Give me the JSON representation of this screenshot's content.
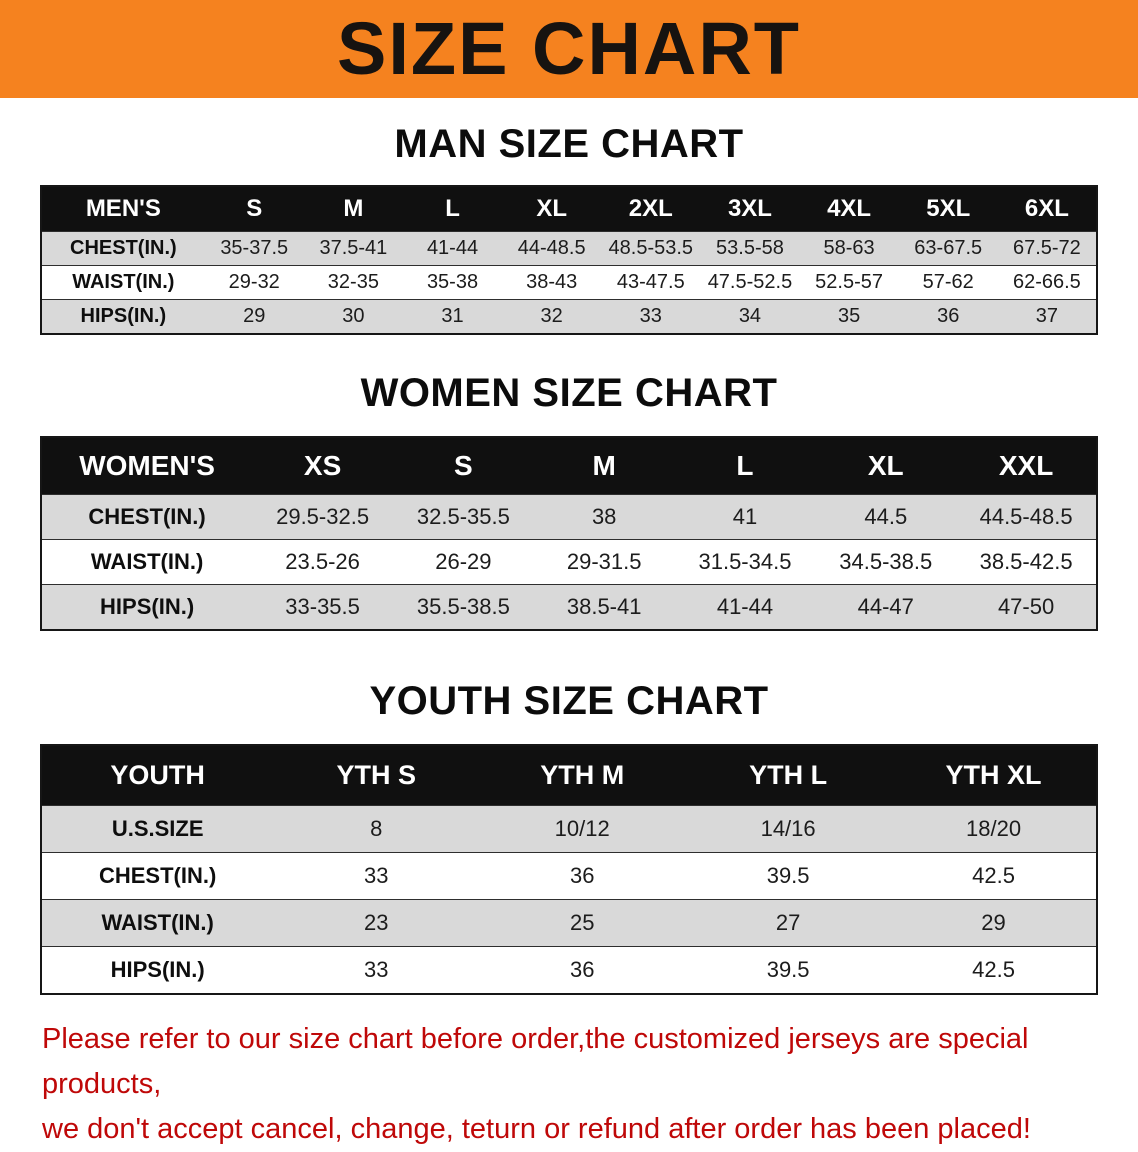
{
  "banner": {
    "title": "SIZE CHART",
    "bg_color": "#F5821F",
    "text_color": "#171310"
  },
  "sections": [
    {
      "heading": "MAN SIZE CHART",
      "table": {
        "label": "MEN'S",
        "columns": [
          "S",
          "M",
          "L",
          "XL",
          "2XL",
          "3XL",
          "4XL",
          "5XL",
          "6XL"
        ],
        "rows": [
          {
            "label": "CHEST(IN.)",
            "values": [
              "35-37.5",
              "37.5-41",
              "41-44",
              "44-48.5",
              "48.5-53.5",
              "53.5-58",
              "58-63",
              "63-67.5",
              "67.5-72"
            ]
          },
          {
            "label": "WAIST(IN.)",
            "values": [
              "29-32",
              "32-35",
              "35-38",
              "38-43",
              "43-47.5",
              "47.5-52.5",
              "52.5-57",
              "57-62",
              "62-66.5"
            ]
          },
          {
            "label": "HIPS(IN.)",
            "values": [
              "29",
              "30",
              "31",
              "32",
              "33",
              "34",
              "35",
              "36",
              "37"
            ]
          }
        ]
      }
    },
    {
      "heading": "WOMEN SIZE CHART",
      "table": {
        "label": "WOMEN'S",
        "columns": [
          "XS",
          "S",
          "M",
          "L",
          "XL",
          "XXL"
        ],
        "rows": [
          {
            "label": "CHEST(IN.)",
            "values": [
              "29.5-32.5",
              "32.5-35.5",
              "38",
              "41",
              "44.5",
              "44.5-48.5"
            ]
          },
          {
            "label": "WAIST(IN.)",
            "values": [
              "23.5-26",
              "26-29",
              "29-31.5",
              "31.5-34.5",
              "34.5-38.5",
              "38.5-42.5"
            ]
          },
          {
            "label": "HIPS(IN.)",
            "values": [
              "33-35.5",
              "35.5-38.5",
              "38.5-41",
              "41-44",
              "44-47",
              "47-50"
            ]
          }
        ]
      }
    },
    {
      "heading": "YOUTH SIZE CHART",
      "table": {
        "label": "YOUTH",
        "columns": [
          "YTH S",
          "YTH M",
          "YTH L",
          "YTH XL"
        ],
        "rows": [
          {
            "label": "U.S.SIZE",
            "values": [
              "8",
              "10/12",
              "14/16",
              "18/20"
            ]
          },
          {
            "label": "CHEST(IN.)",
            "values": [
              "33",
              "36",
              "39.5",
              "42.5"
            ]
          },
          {
            "label": "WAIST(IN.)",
            "values": [
              "23",
              "25",
              "27",
              "29"
            ]
          },
          {
            "label": "HIPS(IN.)",
            "values": [
              "33",
              "36",
              "39.5",
              "42.5"
            ]
          }
        ]
      }
    }
  ],
  "footer": {
    "line1": "Please refer to our size chart before order,the customized jerseys are special products,",
    "line2": "we don't accept cancel, change, teturn or refund after order has been placed!",
    "text_color": "#bf0808"
  },
  "colors": {
    "banner_orange": "#F5821F",
    "header_black": "#101010",
    "row_gray": "#d9d9d9",
    "row_white": "#ffffff",
    "note_red": "#bf0808"
  }
}
